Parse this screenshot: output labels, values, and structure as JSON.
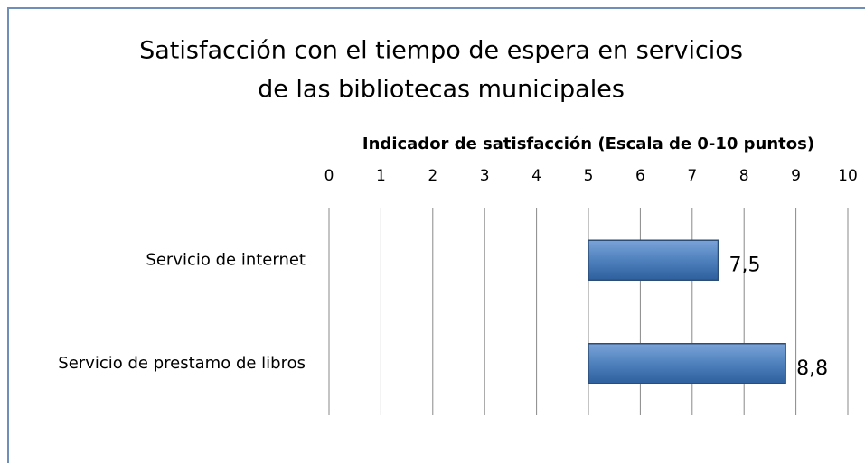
{
  "chart_data": {
    "type": "barh",
    "title": "Satisfacción con el tiempo de espera en servicios de las bibliotecas municipales",
    "title_lines": [
      "Satisfacción con el tiempo de espera en servicios",
      "de las bibliotecas municipales"
    ],
    "xlabel": "Indicador de satisfacción (Escala de 0-10 puntos)",
    "categories": [
      "Servicio de internet",
      "Servicio de prestamo de libros"
    ],
    "values": [
      7.5,
      8.8
    ],
    "value_labels": [
      "7,5",
      "8,8"
    ],
    "bar_base": 5,
    "color": "#4f81bd",
    "xlim": [
      0,
      10
    ],
    "xticks": [
      0,
      1,
      2,
      3,
      4,
      5,
      6,
      7,
      8,
      9,
      10
    ],
    "grid": true
  }
}
